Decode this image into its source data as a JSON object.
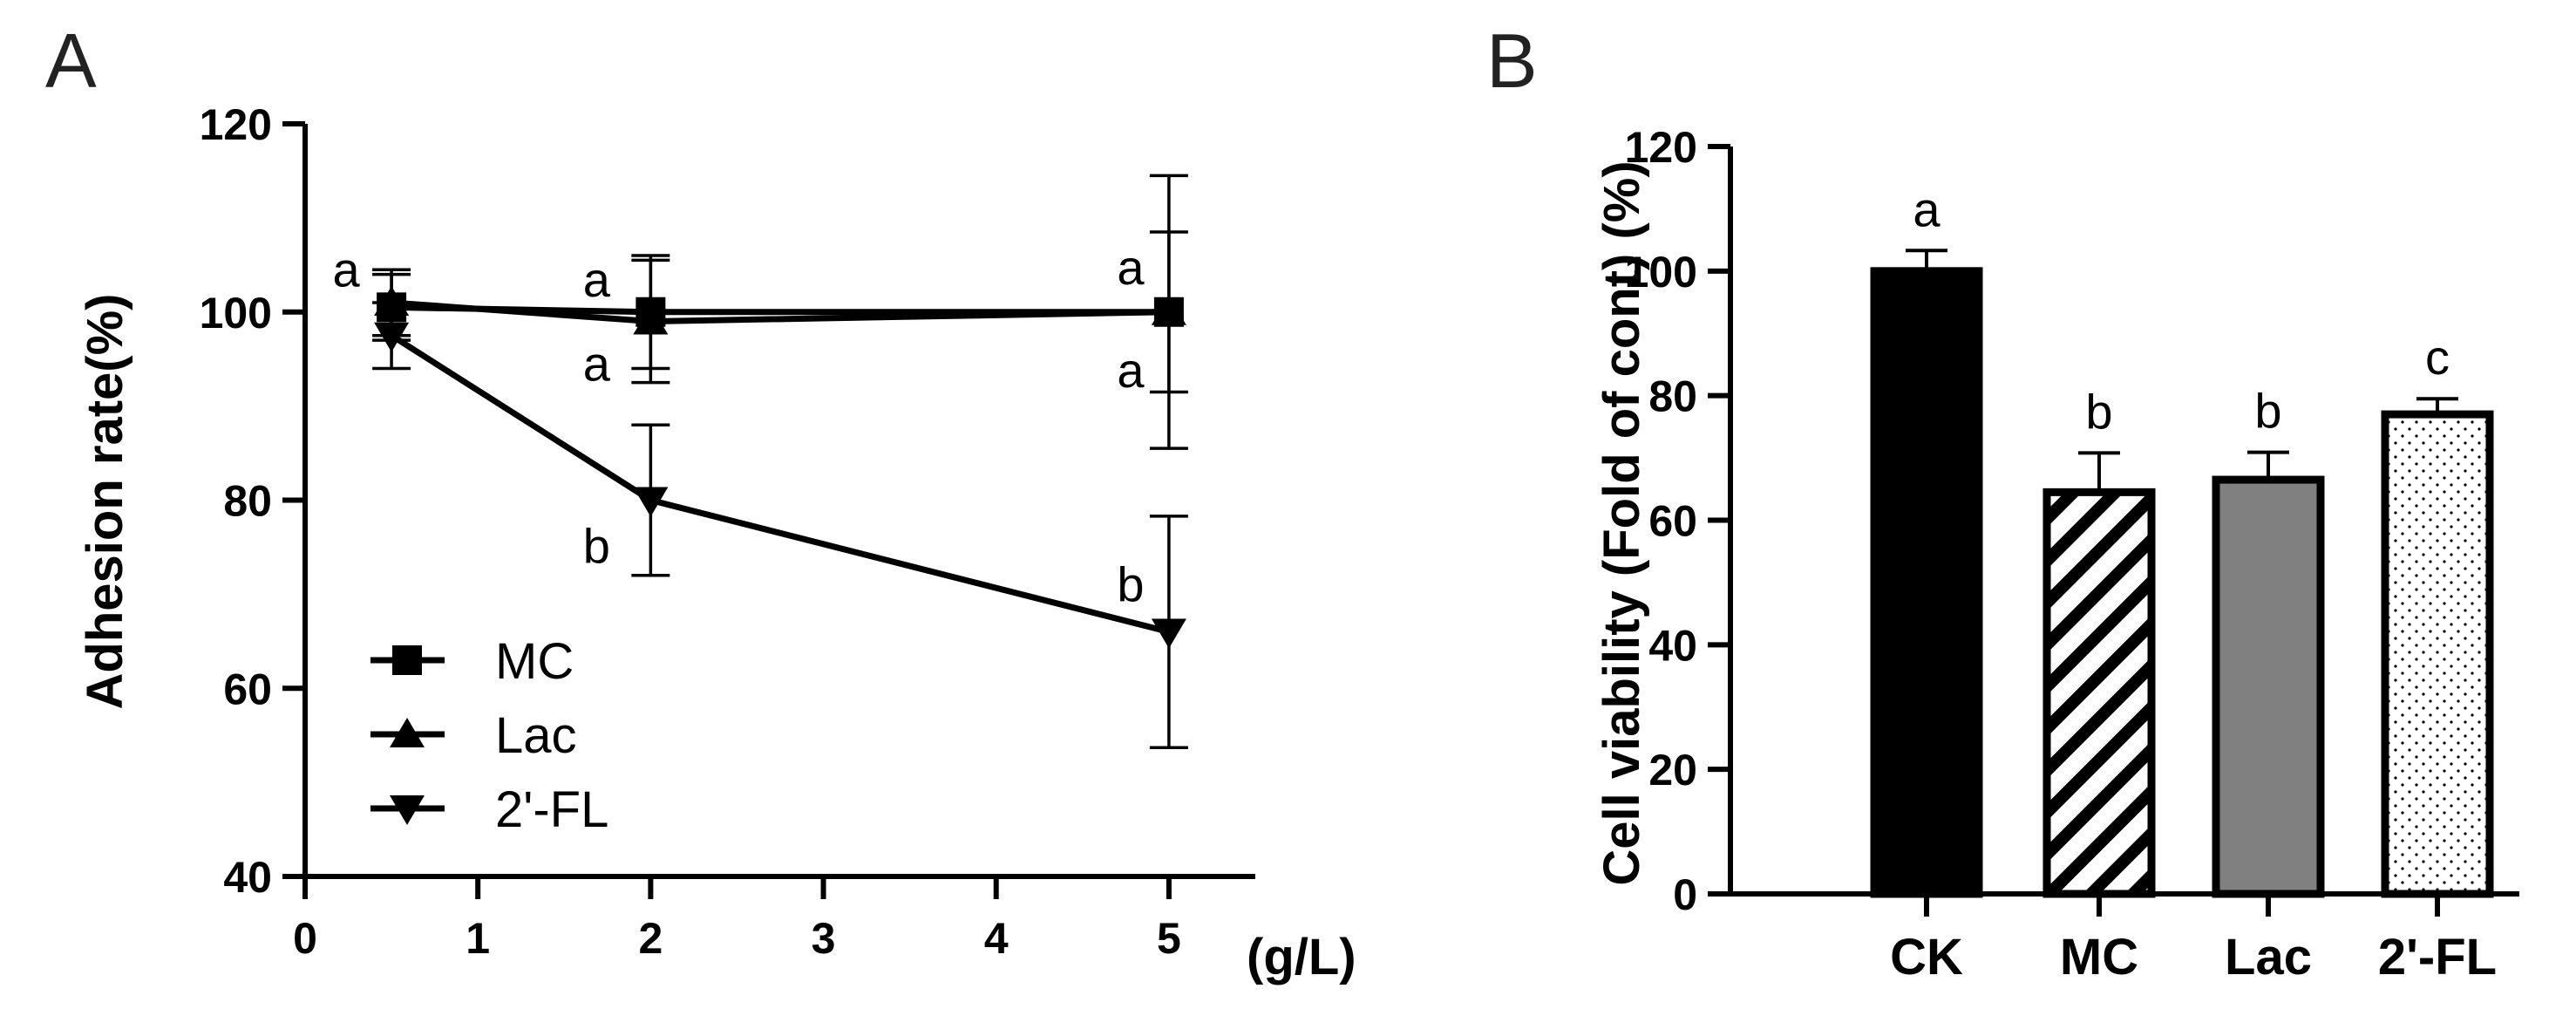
{
  "chart_data": [
    {
      "panel": "A",
      "type": "line",
      "xlabel": "(g/L)",
      "ylabel": "Adhesion rate(%)",
      "xlim": [
        0,
        5.5
      ],
      "ylim": [
        40,
        120
      ],
      "xticks": [
        0,
        1,
        2,
        3,
        4,
        5
      ],
      "yticks": [
        40,
        60,
        80,
        100,
        120
      ],
      "x": [
        0.5,
        2,
        5
      ],
      "legend_position": "bottom-left",
      "series": [
        {
          "name": "MC",
          "marker": "square",
          "values": [
            100.5,
            100,
            100
          ],
          "errors": [
            3.5,
            6,
            14.5
          ],
          "letters": [
            "a",
            "a",
            "a"
          ]
        },
        {
          "name": "Lac",
          "marker": "triangle-up",
          "values": [
            101,
            99,
            100
          ],
          "errors": [
            3.5,
            6.5,
            8.5
          ],
          "letters": [
            "",
            "a",
            "a"
          ]
        },
        {
          "name": "2'-FL",
          "marker": "triangle-down",
          "values": [
            97.5,
            80,
            66
          ],
          "errors": [
            3.5,
            8,
            12.3
          ],
          "letters": [
            "",
            "b",
            "b"
          ]
        }
      ]
    },
    {
      "panel": "B",
      "type": "bar",
      "ylabel": "Cell viability (Fold of cont) (%)",
      "ylim": [
        0,
        120
      ],
      "yticks": [
        0,
        20,
        40,
        60,
        80,
        100,
        120
      ],
      "categories": [
        "CK",
        "MC",
        "Lac",
        "2'-FL"
      ],
      "values": [
        100,
        64.5,
        66.5,
        77
      ],
      "errors": [
        3.3,
        6.3,
        4.4,
        2.5
      ],
      "letters": [
        "a",
        "b",
        "b",
        "c"
      ],
      "fills": [
        "solid-black",
        "diagonal-stripes",
        "solid-gray",
        "dots"
      ],
      "colors": {
        "black": "#000000",
        "gray": "#808080",
        "white": "#ffffff"
      }
    }
  ]
}
